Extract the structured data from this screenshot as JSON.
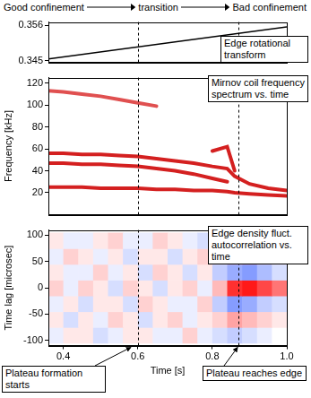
{
  "header": [
    "Good confinement",
    "transition",
    "Bad confinement"
  ],
  "markers": [
    {
      "x": 0.6,
      "label": "Plateau formation starts"
    },
    {
      "x": 0.87,
      "label": "Plateau reaches edge"
    }
  ],
  "chart_data": [
    {
      "type": "line",
      "title": "Edge rotational transform",
      "x": [
        0.36,
        1.0
      ],
      "values": [
        0.3455,
        0.3555
      ],
      "color": "#000000",
      "xlim": [
        0.36,
        1.0
      ],
      "xticks": [
        0.4,
        0.6,
        0.8,
        {
          "value": 1.0,
          "label": "1.0"
        }
      ],
      "ylim": [
        0.3445,
        0.357
      ],
      "yticks": [
        0.345,
        0.356
      ],
      "tick_labels": "y",
      "grid": false
    },
    {
      "type": "line",
      "title": "Mirnov coil frequency spectrum vs. time",
      "ylabel": "Frequency [kHz]",
      "x": [
        0.36,
        0.4,
        0.45,
        0.5,
        0.55,
        0.6,
        0.65,
        0.7,
        0.75,
        0.8,
        0.84,
        0.86,
        0.9,
        0.95,
        1.0
      ],
      "series": [
        {
          "color": "#e05050",
          "values": [
            113,
            112,
            110,
            108,
            105,
            102,
            99,
            null,
            null,
            null,
            null,
            null,
            null,
            null,
            null
          ]
        },
        {
          "color": "#d42020",
          "values": [
            56,
            56,
            55,
            55,
            54,
            53,
            51,
            49,
            47,
            44,
            42,
            35,
            28,
            24,
            22
          ]
        },
        {
          "color": "#d42020",
          "values": [
            47,
            47,
            46,
            46,
            45,
            44,
            42,
            40,
            37,
            33,
            30,
            null,
            null,
            null,
            null
          ]
        },
        {
          "color": "#d42020",
          "values": [
            25,
            25,
            25,
            24,
            24,
            24,
            23,
            23,
            22,
            22,
            21,
            20,
            19,
            18,
            17
          ]
        },
        {
          "color": "#d42020",
          "values": [
            null,
            null,
            null,
            null,
            null,
            null,
            null,
            null,
            null,
            58,
            62,
            40,
            null,
            null,
            null
          ]
        }
      ],
      "xlim": [
        0.36,
        1.0
      ],
      "xticks": [
        0.4,
        0.6,
        0.8,
        {
          "value": 1.0,
          "label": "1.0"
        }
      ],
      "ylim": [
        0,
        125
      ],
      "yticks": [
        20,
        40,
        60,
        80,
        100,
        120
      ],
      "tick_labels": "y",
      "grid": false
    },
    {
      "type": "heatmap",
      "title": "Edge density fluct. autocorrelation vs. time",
      "xlabel": "Time [s]",
      "ylabel": "Time lag [microsec]",
      "x_edges": [
        0.36,
        0.4,
        0.44,
        0.48,
        0.52,
        0.56,
        0.6,
        0.64,
        0.68,
        0.72,
        0.76,
        0.8,
        0.84,
        0.88,
        0.92,
        0.96,
        1.0
      ],
      "y_edges": [
        -105,
        -75,
        -45,
        -15,
        15,
        45,
        75,
        105
      ],
      "cells": [
        [
          -0.1,
          0.1,
          0.1,
          -0.2,
          -0.1,
          0.1,
          0.1,
          -0.1,
          -0.1,
          0.2,
          -0.1,
          -0.2,
          -0.3,
          -0.2,
          -0.1,
          0.0
        ],
        [
          0.1,
          -0.2,
          0.1,
          -0.1,
          0.2,
          0.1,
          -0.2,
          0.1,
          0.2,
          -0.1,
          0.1,
          0.2,
          0.4,
          0.3,
          0.2,
          0.1
        ],
        [
          -0.1,
          0.1,
          -0.2,
          0.1,
          0.1,
          -0.2,
          0.2,
          0.1,
          -0.1,
          -0.1,
          0.2,
          -0.3,
          -0.6,
          -0.5,
          -0.3,
          -0.2
        ],
        [
          0.2,
          -0.1,
          0.2,
          0.1,
          -0.2,
          0.2,
          0.1,
          -0.2,
          0.1,
          0.2,
          -0.1,
          0.3,
          0.9,
          1.0,
          0.8,
          0.6
        ],
        [
          0.1,
          -0.1,
          -0.1,
          0.2,
          -0.1,
          0.1,
          -0.2,
          0.2,
          0.1,
          -0.2,
          0.1,
          -0.3,
          -0.5,
          -0.6,
          -0.4,
          -0.2
        ],
        [
          -0.1,
          0.2,
          0.1,
          -0.1,
          0.1,
          -0.2,
          0.1,
          0.1,
          -0.2,
          0.1,
          0.2,
          0.1,
          0.3,
          0.4,
          0.2,
          0.1
        ],
        [
          0.1,
          -0.1,
          -0.1,
          0.1,
          0.2,
          -0.1,
          -0.1,
          0.2,
          0.1,
          -0.1,
          -0.2,
          -0.1,
          -0.2,
          -0.3,
          -0.2,
          -0.1
        ]
      ],
      "xlim": [
        0.36,
        1.0
      ],
      "xticks": [
        0.4,
        0.6,
        0.8,
        {
          "value": 1.0,
          "label": "1.0"
        }
      ],
      "ylim": [
        -110,
        110
      ],
      "yticks": [
        -100,
        -50,
        0,
        50,
        100
      ],
      "grid": false
    }
  ]
}
